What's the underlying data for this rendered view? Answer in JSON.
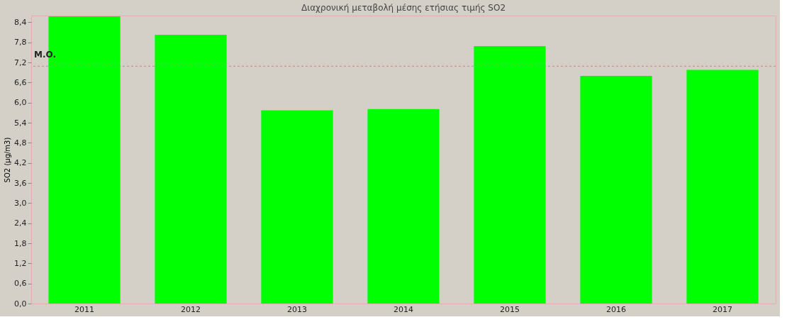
{
  "chart_data": {
    "type": "bar",
    "title": "Διαχρονική μεταβολή μέσης ετήσιας τιμής SO2",
    "ylabel": "SO2 (μg/m3)",
    "categories": [
      "2011",
      "2012",
      "2013",
      "2014",
      "2015",
      "2016",
      "2017"
    ],
    "series": [
      {
        "color": "#00ff00",
        "values": [
          8.58,
          8.03,
          5.77,
          5.81,
          7.69,
          6.8,
          6.98
        ]
      }
    ],
    "ylim": [
      0,
      8.6
    ],
    "yticks": [
      {
        "value": 0,
        "label": "0,0"
      },
      {
        "value": 0.6,
        "label": "0,6"
      },
      {
        "value": 1.2,
        "label": "1,2"
      },
      {
        "value": 1.8,
        "label": "1,8"
      },
      {
        "value": 2.4,
        "label": "2,4"
      },
      {
        "value": 3.0,
        "label": "3,0"
      },
      {
        "value": 3.6,
        "label": "3,6"
      },
      {
        "value": 4.2,
        "label": "4,2"
      },
      {
        "value": 4.8,
        "label": "4,8"
      },
      {
        "value": 5.4,
        "label": "5,4"
      },
      {
        "value": 6.0,
        "label": "6,0"
      },
      {
        "value": 6.6,
        "label": "6,6"
      },
      {
        "value": 7.2,
        "label": "7,2"
      },
      {
        "value": 7.8,
        "label": "7,8"
      },
      {
        "value": 8.4,
        "label": "8,4"
      }
    ],
    "ref_lines": [
      {
        "axis": "y",
        "value": 7.09,
        "label": "M.O.",
        "color": "#d08080",
        "line_style": "dashed"
      }
    ],
    "grid": false
  }
}
